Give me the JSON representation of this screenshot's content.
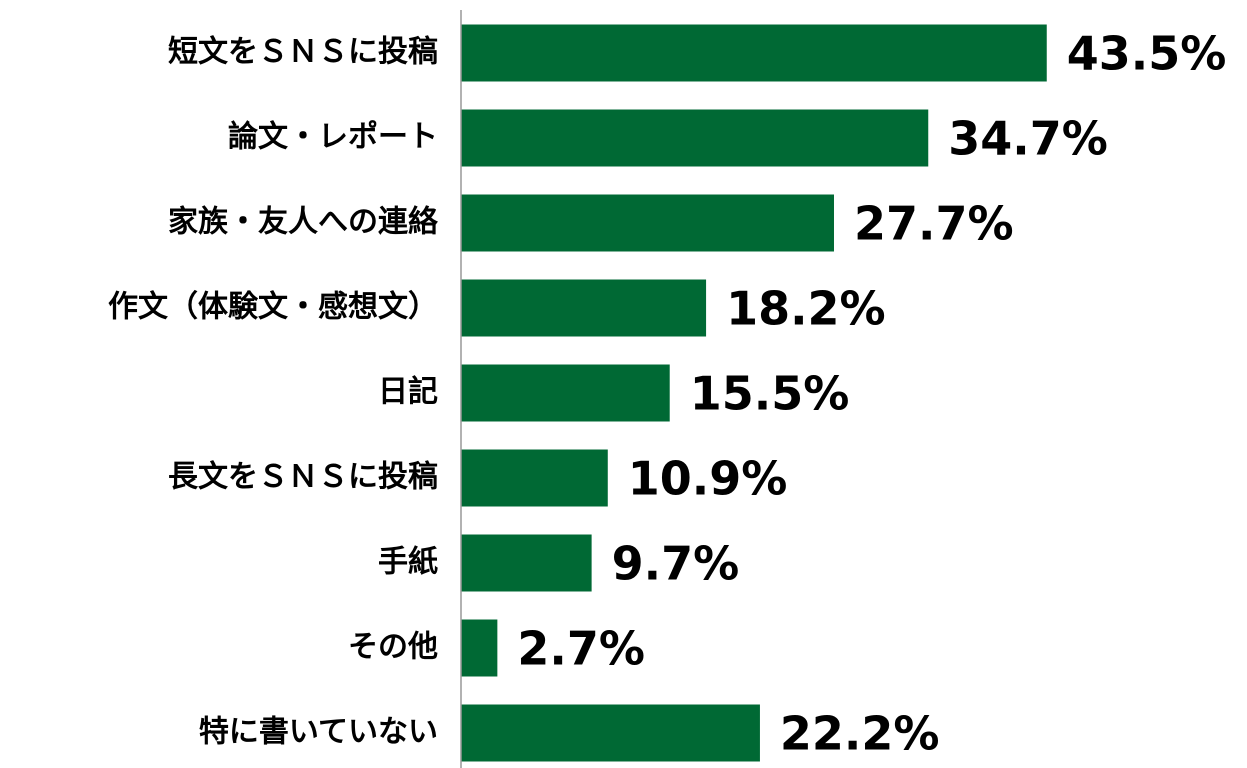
{
  "chart_data": {
    "type": "barh",
    "categories": [
      "短文をＳＮＳに投稿",
      "論文・レポート",
      "家族・友人への連絡",
      "作文（体験文・感想文）",
      "日記",
      "長文をＳＮＳに投稿",
      "手紙",
      "その他",
      "特に書いていない"
    ],
    "values": [
      43.5,
      34.7,
      27.7,
      18.2,
      15.5,
      10.9,
      9.7,
      2.7,
      22.2
    ],
    "value_labels": [
      "43.5%",
      "34.7%",
      "27.7%",
      "18.2%",
      "15.5%",
      "10.9%",
      "9.7%",
      "2.7%",
      "22.2%"
    ],
    "color": "#006934",
    "xlim": [
      0,
      58
    ]
  }
}
